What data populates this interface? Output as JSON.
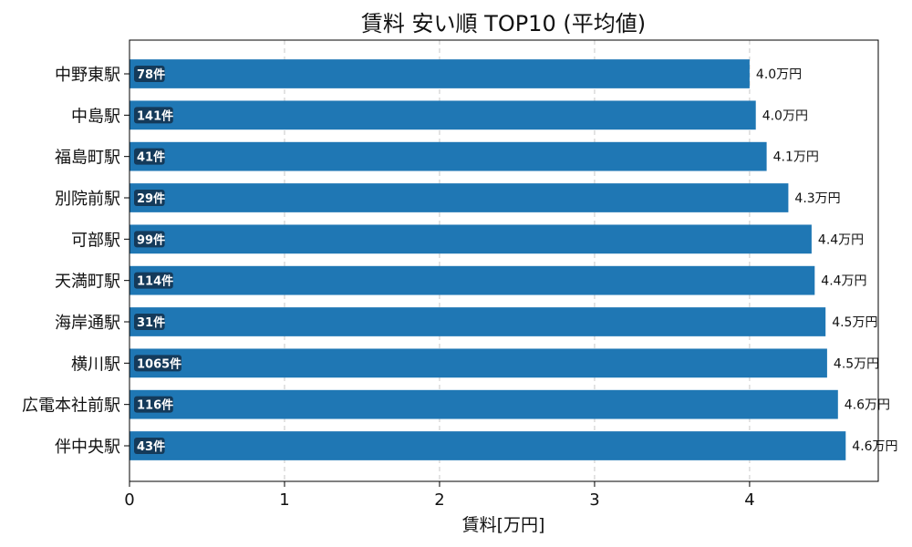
{
  "chart_data": {
    "type": "bar",
    "orientation": "horizontal",
    "title": "賃料 安い順 TOP10 (平均値)",
    "xlabel": "賃料[万円]",
    "ylabel": "",
    "xlim": [
      0,
      4.83
    ],
    "xticks": [
      "0",
      "1",
      "2",
      "3",
      "4"
    ],
    "grid": "x-dashed",
    "categories": [
      "中野東駅",
      "中島駅",
      "福島町駅",
      "別院前駅",
      "可部駅",
      "天満町駅",
      "海岸通駅",
      "横川駅",
      "広電本社前駅",
      "伴中央駅"
    ],
    "values": [
      4.0,
      4.04,
      4.11,
      4.25,
      4.4,
      4.42,
      4.49,
      4.5,
      4.57,
      4.62
    ],
    "value_labels": [
      "4.0万円",
      "4.0万円",
      "4.1万円",
      "4.3万円",
      "4.4万円",
      "4.4万円",
      "4.5万円",
      "4.5万円",
      "4.6万円",
      "4.6万円"
    ],
    "count_labels": [
      "78件",
      "141件",
      "41件",
      "29件",
      "99件",
      "114件",
      "31件",
      "1065件",
      "116件",
      "43件"
    ],
    "bar_color": "#1f77b4",
    "count_badge_color": "#143a5a"
  }
}
